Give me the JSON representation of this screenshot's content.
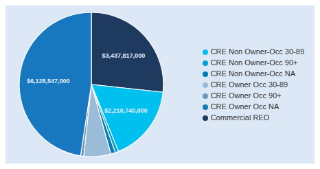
{
  "chart_data": {
    "type": "pie",
    "categories": [
      "Commercial REO",
      "CRE Non Owner-Occ 30-89",
      "CRE Non Owner-Occ 90+",
      "CRE Non Owner-Occ NA",
      "CRE Owner Occ 30-89",
      "CRE Owner Occ 90+",
      "CRE Owner Occ NA"
    ],
    "values": [
      3437817000,
      2210740000,
      95000000,
      130000000,
      780000000,
      90000000,
      6128547000
    ],
    "value_labels": [
      "$3,437,817,000",
      "$2,210,740,000",
      null,
      null,
      null,
      null,
      "$6,128,547,000"
    ],
    "colors": [
      "#1e3a5f",
      "#00c0f0",
      "#009fd4",
      "#007db8",
      "#9bbcd8",
      "#6699bb",
      "#1778c0"
    ],
    "data_labels": true,
    "legend": "right"
  }
}
